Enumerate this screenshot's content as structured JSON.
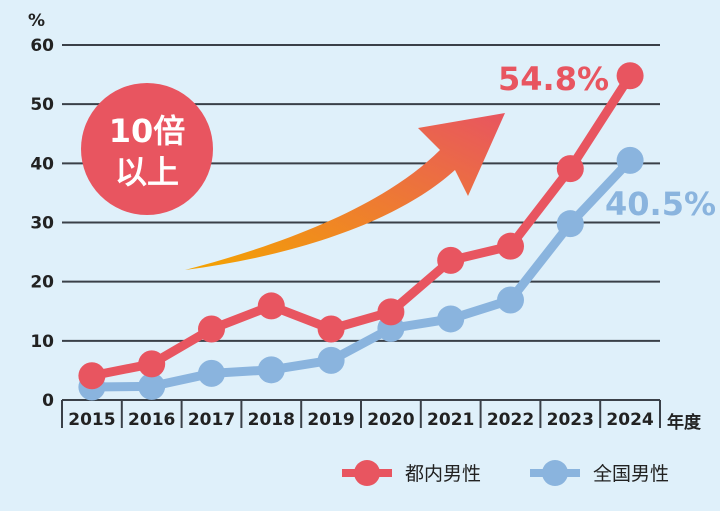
{
  "chart_data": {
    "type": "line",
    "categories": [
      "2015",
      "2016",
      "2017",
      "2018",
      "2019",
      "2020",
      "2021",
      "2022",
      "2023",
      "2024"
    ],
    "series": [
      {
        "name": "都内男性",
        "color": "#e85560",
        "values": [
          4.1,
          6.1,
          12.0,
          15.9,
          12.0,
          14.9,
          23.6,
          26.0,
          39.1,
          54.8
        ]
      },
      {
        "name": "全国男性",
        "color": "#8ab4de",
        "values": [
          2.2,
          2.3,
          4.5,
          5.1,
          6.7,
          12.1,
          13.7,
          16.9,
          29.8,
          40.5
        ]
      }
    ],
    "ylabel": "%",
    "xlabel": "年度",
    "ylim": [
      0,
      60
    ],
    "yticks": [
      "0",
      "10",
      "20",
      "30",
      "40",
      "50",
      "60"
    ],
    "grid": true,
    "legend": "bottom-right",
    "annotations": {
      "red_end_label": "54.8%",
      "blue_end_label": "40.5%",
      "badge_line1": "10倍",
      "badge_line2": "以上"
    },
    "badge_color": "#e85560",
    "arrow_colors": [
      "#f4a400",
      "#e85560"
    ]
  }
}
